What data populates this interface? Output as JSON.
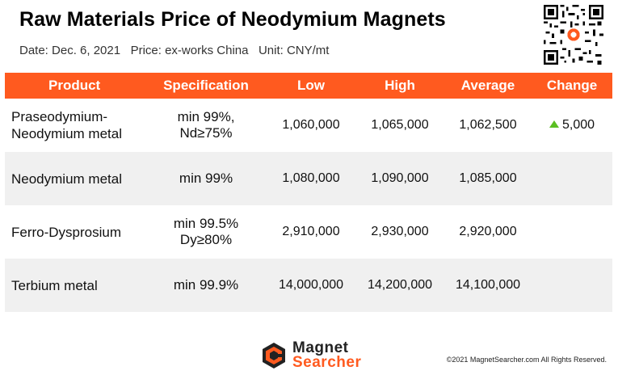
{
  "header": {
    "title": "Raw Materials Price of Neodymium Magnets",
    "subtitle": "Date: Dec. 6, 2021   Price: ex-works China   Unit: CNY/mt"
  },
  "table": {
    "columns": [
      "Product",
      "Specification",
      "Low",
      "High",
      "Average",
      "Change"
    ],
    "rows": [
      {
        "product": [
          "Praseodymium-",
          "Neodymium metal"
        ],
        "spec": [
          "min 99%,",
          "Nd≥75%"
        ],
        "low": "1,060,000",
        "high": "1,065,000",
        "average": "1,062,500",
        "change": "5,000",
        "change_direction": "up"
      },
      {
        "product": [
          "Neodymium metal"
        ],
        "spec": [
          "min 99%"
        ],
        "low": "1,080,000",
        "high": "1,090,000",
        "average": "1,085,000",
        "change": ""
      },
      {
        "product": [
          "Ferro-Dysprosium"
        ],
        "spec": [
          "min 99.5%",
          "Dy≥80%"
        ],
        "low": "2,910,000",
        "high": "2,930,000",
        "average": "2,920,000",
        "change": ""
      },
      {
        "product": [
          "Terbium metal"
        ],
        "spec": [
          "min 99.9%"
        ],
        "low": "14,000,000",
        "high": "14,200,000",
        "average": "14,100,000",
        "change": ""
      }
    ]
  },
  "footer": {
    "logo_line1": "Magnet",
    "logo_line2": "Searcher",
    "copyright": "©2021 MagnetSearcher.com All Rights Reserved."
  },
  "colors": {
    "accent": "#ff5a1f",
    "row_band": "#f0f0f0",
    "change_up": "#5bbf22"
  }
}
